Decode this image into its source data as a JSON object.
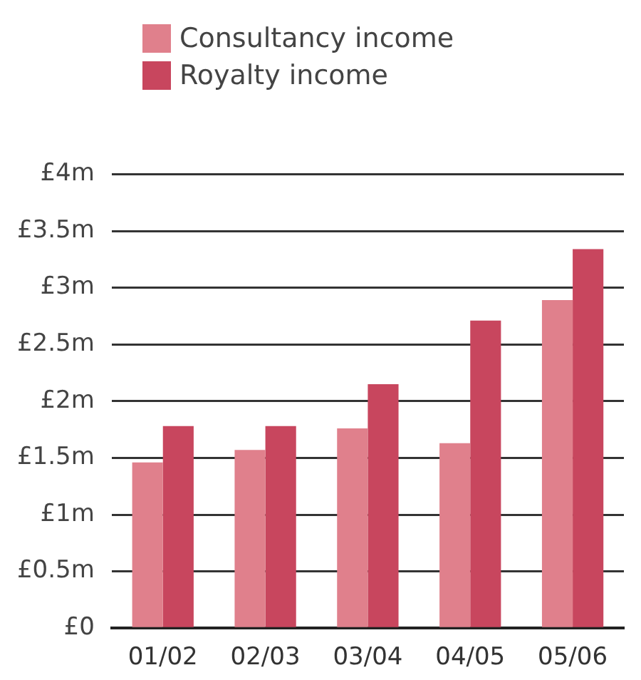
{
  "chart_data": {
    "type": "bar",
    "categories": [
      "01/02",
      "02/03",
      "03/04",
      "04/05",
      "05/06"
    ],
    "series": [
      {
        "name": "Consultancy income",
        "color": "#e0808c",
        "values": [
          1.46,
          1.57,
          1.76,
          1.63,
          2.89
        ]
      },
      {
        "name": "Royalty income",
        "color": "#c8465e",
        "values": [
          1.78,
          1.78,
          2.15,
          2.71,
          3.34
        ]
      }
    ],
    "ylim": [
      0,
      4
    ],
    "yticks": [
      {
        "value": 0,
        "label": "£0"
      },
      {
        "value": 0.5,
        "label": "£0.5m"
      },
      {
        "value": 1,
        "label": "£1m"
      },
      {
        "value": 1.5,
        "label": "£1.5m"
      },
      {
        "value": 2,
        "label": "£2m"
      },
      {
        "value": 2.5,
        "label": "£2.5m"
      },
      {
        "value": 3,
        "label": "£3m"
      },
      {
        "value": 3.5,
        "label": "£3.5m"
      },
      {
        "value": 4,
        "label": "£4m"
      }
    ],
    "grid": "y",
    "legend": "top left"
  }
}
